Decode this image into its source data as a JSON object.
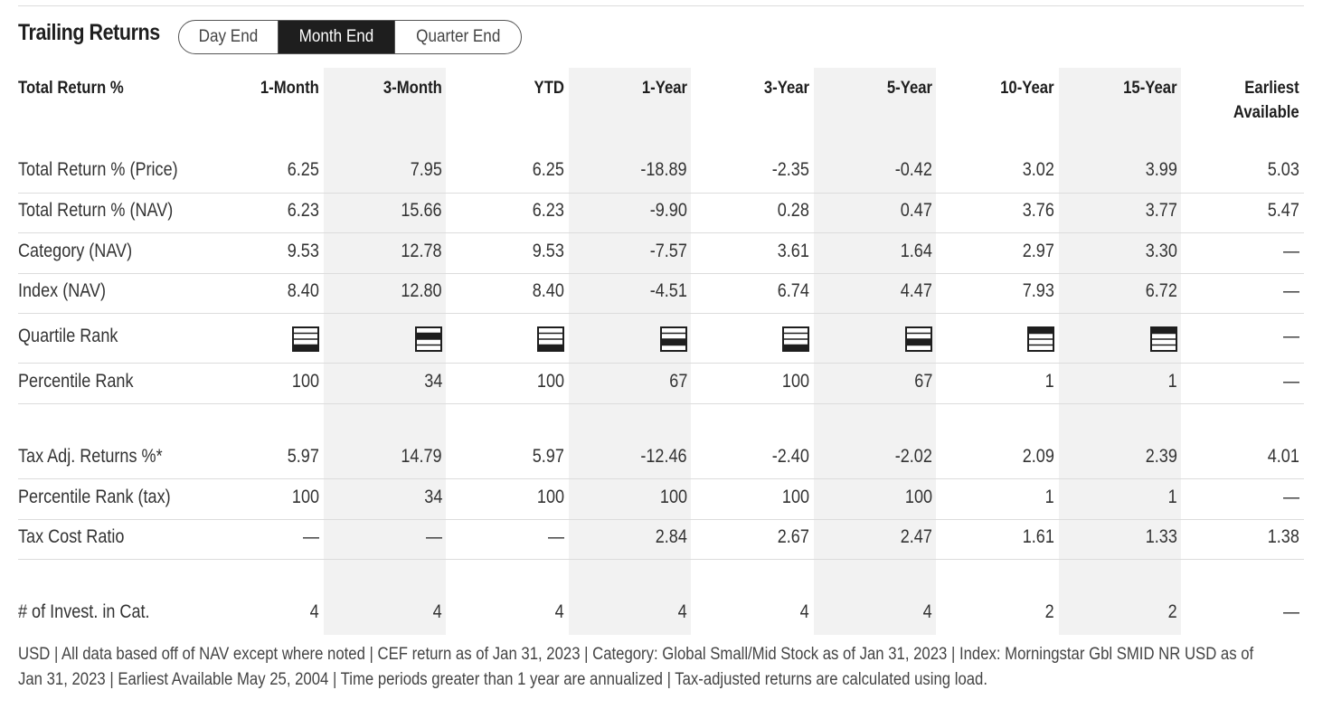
{
  "title": "Trailing Returns",
  "toggle": {
    "options": [
      "Day End",
      "Month End",
      "Quarter End"
    ],
    "selected": "Month End"
  },
  "table": {
    "header_label": "Total Return %",
    "columns": [
      "1-Month",
      "3-Month",
      "YTD",
      "1-Year",
      "3-Year",
      "5-Year",
      "10-Year",
      "15-Year"
    ],
    "last_column": [
      "Earliest",
      "Available"
    ],
    "rows": [
      {
        "label": "Total Return % (Price)",
        "values": [
          "6.25",
          "7.95",
          "6.25",
          "-18.89",
          "-2.35",
          "-0.42",
          "3.02",
          "3.99",
          "5.03"
        ]
      },
      {
        "label": "Total Return % (NAV)",
        "values": [
          "6.23",
          "15.66",
          "6.23",
          "-9.90",
          "0.28",
          "0.47",
          "3.76",
          "3.77",
          "5.47"
        ]
      },
      {
        "label": "Category (NAV)",
        "values": [
          "9.53",
          "12.78",
          "9.53",
          "-7.57",
          "3.61",
          "1.64",
          "2.97",
          "3.30",
          "—"
        ]
      },
      {
        "label": "Index (NAV)",
        "values": [
          "8.40",
          "12.80",
          "8.40",
          "-4.51",
          "6.74",
          "4.47",
          "7.93",
          "6.72",
          "—"
        ]
      },
      {
        "label": "Quartile Rank",
        "quartiles": [
          4,
          2,
          4,
          3,
          4,
          3,
          1,
          1
        ],
        "last": "—"
      },
      {
        "label": "Percentile Rank",
        "values": [
          "100",
          "34",
          "100",
          "67",
          "100",
          "67",
          "1",
          "1",
          "—"
        ]
      },
      {
        "label": "Tax Adj. Returns %*",
        "values": [
          "5.97",
          "14.79",
          "5.97",
          "-12.46",
          "-2.40",
          "-2.02",
          "2.09",
          "2.39",
          "4.01"
        ]
      },
      {
        "label": "Percentile Rank (tax)",
        "values": [
          "100",
          "34",
          "100",
          "100",
          "100",
          "100",
          "1",
          "1",
          "—"
        ]
      },
      {
        "label": "Tax Cost Ratio",
        "values": [
          "—",
          "—",
          "—",
          "2.84",
          "2.67",
          "2.47",
          "1.61",
          "1.33",
          "1.38"
        ]
      },
      {
        "label": "# of Invest. in Cat.",
        "values": [
          "4",
          "4",
          "4",
          "4",
          "4",
          "4",
          "2",
          "2",
          "—"
        ]
      }
    ]
  },
  "footnote_lines": [
    "USD | All data based off of NAV except where noted | CEF return as of Jan 31, 2023 |  Category: Global Small/Mid Stock as of Jan 31, 2023 |  Index: Morningstar Gbl SMID NR USD as of",
    "Jan 31, 2023 |  Earliest Available May 25, 2004 |  Time periods greater than 1 year are annualized  | Tax-adjusted returns are calculated using load."
  ]
}
